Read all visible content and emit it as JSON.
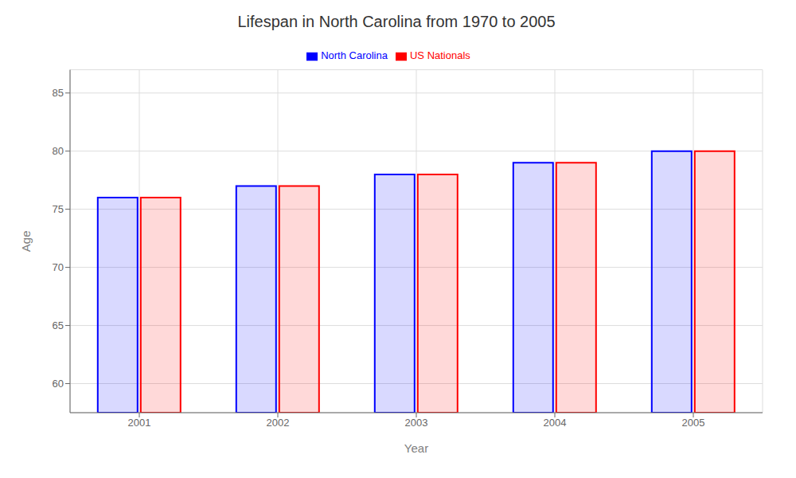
{
  "chart_data": {
    "type": "bar",
    "title": "Lifespan in North Carolina from 1970 to 2005",
    "x_label": "Year",
    "y_label": "Age",
    "categories": [
      "2001",
      "2002",
      "2003",
      "2004",
      "2005"
    ],
    "series": [
      {
        "name": "North Carolina",
        "color": "#0000ff",
        "values": [
          76,
          77,
          78,
          79,
          80
        ]
      },
      {
        "name": "US Nationals",
        "color": "#ff0000",
        "values": [
          76,
          77,
          78,
          79,
          80
        ]
      }
    ],
    "ylim": [
      57.5,
      87
    ],
    "yticks": [
      60,
      65,
      70,
      75,
      80,
      85
    ],
    "grid": true,
    "legend": "top"
  }
}
